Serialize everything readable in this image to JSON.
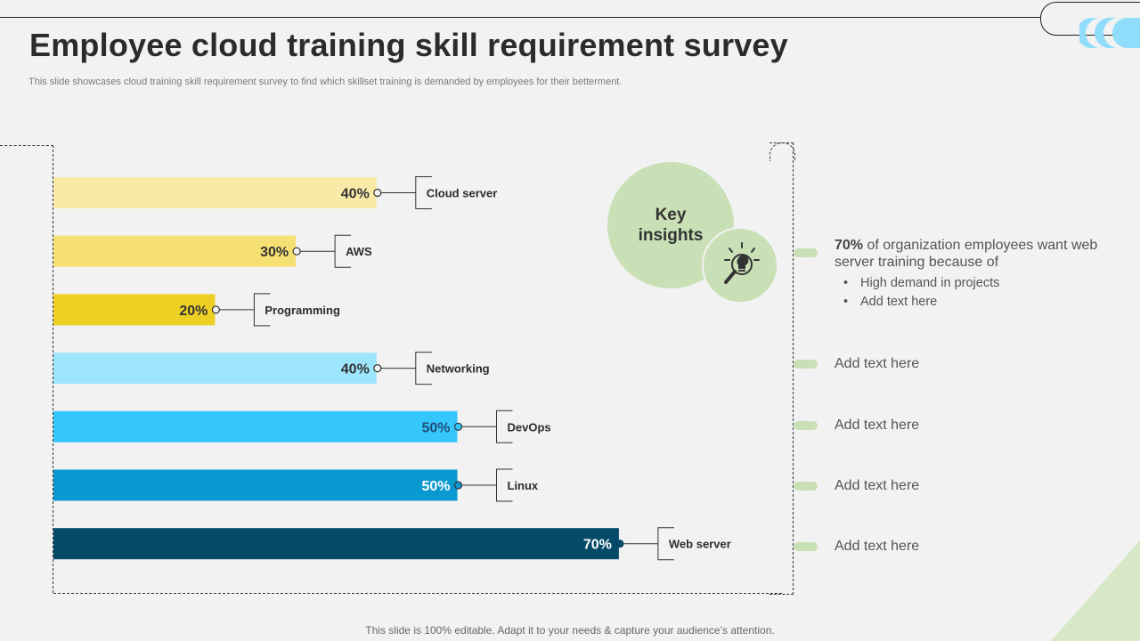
{
  "header": {
    "title": "Employee cloud training skill requirement survey",
    "subtitle": "This slide showcases cloud training skill requirement survey to find which skillset training is demanded by employees for their betterment."
  },
  "chart_data": {
    "type": "bar",
    "orientation": "horizontal",
    "categories": [
      "Cloud server",
      "AWS",
      "Programming",
      "Networking",
      "DevOps",
      "Linux",
      "Web server"
    ],
    "values": [
      40,
      30,
      20,
      40,
      50,
      50,
      70
    ],
    "value_labels": [
      "40%",
      "30%",
      "20%",
      "40%",
      "50%",
      "50%",
      "70%"
    ],
    "colors": [
      "#f9eaa8",
      "#f6df73",
      "#eecf24",
      "#9de4fd",
      "#35c6fb",
      "#0a98d0",
      "#054a68"
    ],
    "value_text_colors": [
      "#333333",
      "#333333",
      "#333333",
      "#333333",
      "#1f4e79",
      "#ffffff",
      "#ffffff"
    ],
    "grid": false,
    "legend": "none"
  },
  "insights": {
    "title": "Key\ninsights",
    "main_highlight": "70%",
    "main_text": " of organization employees want web server training because of",
    "bullets": [
      "High demand in projects",
      "Add text here"
    ],
    "items": [
      "Add text here",
      "Add text here",
      "Add text here",
      "Add text here"
    ],
    "accent_color": "#c9e0b6",
    "icon": "bulb-magnifier-icon"
  },
  "footer": {
    "note": "This slide is 100% editable. Adapt it to your needs & capture your audience’s attention."
  }
}
